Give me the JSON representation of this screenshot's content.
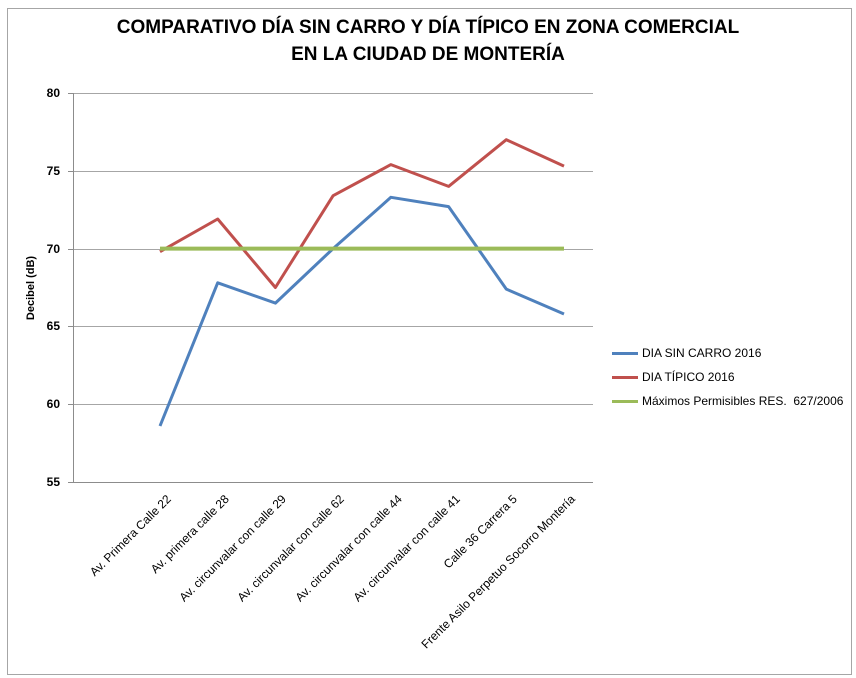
{
  "title": {
    "line1": "COMPARATIVO DÍA SIN CARRO Y DÍA TÍPICO EN ZONA COMERCIAL",
    "line2": "EN LA CIUDAD DE MONTERÍA"
  },
  "chart_data": {
    "type": "line",
    "title": "COMPARATIVO DÍA SIN CARRO Y DÍA TÍPICO EN ZONA COMERCIAL EN LA CIUDAD DE MONTERÍA",
    "xlabel": "",
    "ylabel": "Decibel (dB)",
    "ylim": [
      55,
      80
    ],
    "yticks": [
      80,
      75,
      70,
      65,
      60,
      55
    ],
    "grid": true,
    "legend_position": "right",
    "categories": [
      "Av. Primera Calle 22",
      "Av. primera calle 28",
      "Av. circunvalar con calle 29",
      "Av. circunvalar con calle 62",
      "Av. circunvalar con calle 44",
      "Av. circunvalar con calle 41",
      "Calle 36 Carrera 5",
      "Frente Asilo Perpetuo Socorro Montería"
    ],
    "series": [
      {
        "name": "DIA SIN CARRO 2016",
        "color": "#4F81BD",
        "values": [
          58.6,
          67.8,
          66.5,
          70.0,
          73.3,
          72.7,
          67.4,
          65.8
        ]
      },
      {
        "name": "DIA TÍPICO 2016",
        "color": "#C0504D",
        "values": [
          69.8,
          71.9,
          67.5,
          73.4,
          75.4,
          74.0,
          77.0,
          75.3
        ]
      },
      {
        "name": "Máximos Permisibles RES.  627/2006",
        "color": "#9BBB59",
        "values": [
          70,
          70,
          70,
          70,
          70,
          70,
          70,
          70
        ]
      }
    ],
    "grid_color": "#A6A6A6",
    "axis_color": "#8C8C8C",
    "border_color": "#A6A6A6"
  }
}
